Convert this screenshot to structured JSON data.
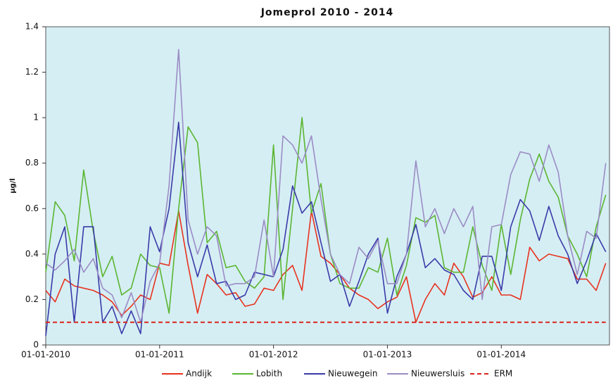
{
  "chart_data": {
    "type": "line",
    "title": "Jomeprol 2010 - 2014",
    "y_label": "µg/l",
    "x": [
      2010,
      2010.083,
      2010.167,
      2010.25,
      2010.333,
      2010.417,
      2010.5,
      2010.583,
      2010.667,
      2010.75,
      2010.833,
      2010.917,
      2011,
      2011.083,
      2011.167,
      2011.25,
      2011.333,
      2011.417,
      2011.5,
      2011.583,
      2011.667,
      2011.75,
      2011.833,
      2011.917,
      2012,
      2012.083,
      2012.167,
      2012.25,
      2012.333,
      2012.417,
      2012.5,
      2012.583,
      2012.667,
      2012.75,
      2012.833,
      2012.917,
      2013,
      2013.083,
      2013.167,
      2013.25,
      2013.333,
      2013.417,
      2013.5,
      2013.583,
      2013.667,
      2013.75,
      2013.833,
      2013.917,
      2014,
      2014.083,
      2014.167,
      2014.25,
      2014.333,
      2014.417,
      2014.5,
      2014.583,
      2014.667,
      2014.75,
      2014.833,
      2014.917
    ],
    "series": [
      {
        "name": "Andijk",
        "color": "#e8321e",
        "values": [
          0.24,
          0.19,
          0.29,
          0.26,
          0.25,
          0.24,
          0.22,
          0.19,
          0.13,
          0.17,
          0.22,
          0.2,
          0.36,
          0.35,
          0.59,
          0.35,
          0.14,
          0.31,
          0.27,
          0.22,
          0.23,
          0.17,
          0.18,
          0.25,
          0.24,
          0.31,
          0.35,
          0.24,
          0.59,
          0.39,
          0.36,
          0.31,
          0.25,
          0.22,
          0.2,
          0.16,
          0.19,
          0.21,
          0.3,
          0.1,
          0.2,
          0.27,
          0.22,
          0.36,
          0.3,
          0.21,
          0.23,
          0.3,
          0.22,
          0.22,
          0.2,
          0.43,
          0.37,
          0.4,
          0.39,
          0.38,
          0.29,
          0.29,
          0.24,
          0.36
        ]
      },
      {
        "name": "Lobith",
        "color": "#5bb531",
        "values": [
          0.32,
          0.63,
          0.57,
          0.37,
          0.77,
          0.5,
          0.3,
          0.39,
          0.22,
          0.25,
          0.4,
          0.35,
          0.34,
          0.14,
          0.6,
          0.96,
          0.89,
          0.45,
          0.5,
          0.34,
          0.35,
          0.28,
          0.25,
          0.3,
          0.88,
          0.2,
          0.6,
          1.0,
          0.58,
          0.71,
          0.4,
          0.27,
          0.25,
          0.25,
          0.34,
          0.32,
          0.47,
          0.22,
          0.35,
          0.56,
          0.54,
          0.57,
          0.34,
          0.32,
          0.32,
          0.52,
          0.35,
          0.24,
          0.53,
          0.31,
          0.55,
          0.73,
          0.84,
          0.72,
          0.65,
          0.48,
          0.4,
          0.3,
          0.52,
          0.66
        ]
      },
      {
        "name": "Nieuwegein",
        "color": "#3a3aa8",
        "values": [
          0.04,
          0.4,
          0.52,
          0.1,
          0.52,
          0.52,
          0.1,
          0.17,
          0.05,
          0.15,
          0.05,
          0.52,
          0.41,
          0.6,
          0.98,
          0.45,
          0.3,
          0.44,
          0.27,
          0.28,
          0.2,
          0.22,
          0.32,
          0.31,
          0.3,
          0.42,
          0.7,
          0.58,
          0.63,
          0.45,
          0.28,
          0.31,
          0.17,
          0.28,
          0.4,
          0.47,
          0.14,
          0.3,
          0.4,
          0.53,
          0.34,
          0.38,
          0.33,
          0.31,
          0.24,
          0.2,
          0.39,
          0.39,
          0.24,
          0.52,
          0.64,
          0.59,
          0.46,
          0.61,
          0.48,
          0.4,
          0.27,
          0.37,
          0.49,
          0.41
        ]
      },
      {
        "name": "Nieuwersluis",
        "color": "#9b8cc4",
        "values": [
          0.36,
          0.33,
          0.37,
          0.42,
          0.32,
          0.38,
          0.25,
          0.22,
          0.12,
          0.23,
          0.1,
          0.28,
          0.36,
          0.7,
          1.3,
          0.55,
          0.4,
          0.52,
          0.48,
          0.26,
          0.27,
          0.27,
          0.3,
          0.55,
          0.3,
          0.92,
          0.88,
          0.8,
          0.92,
          0.64,
          0.4,
          0.31,
          0.27,
          0.43,
          0.38,
          0.46,
          0.27,
          0.27,
          0.4,
          0.81,
          0.52,
          0.6,
          0.49,
          0.6,
          0.52,
          0.61,
          0.2,
          0.52,
          0.53,
          0.75,
          0.85,
          0.84,
          0.72,
          0.88,
          0.76,
          0.48,
          0.31,
          0.5,
          0.47,
          0.8
        ]
      },
      {
        "name": "ERM",
        "color": "#d9261c",
        "dashed": true,
        "values": [
          0.1,
          0.1,
          0.1,
          0.1,
          0.1,
          0.1,
          0.1,
          0.1,
          0.1,
          0.1,
          0.1,
          0.1,
          0.1,
          0.1,
          0.1,
          0.1,
          0.1,
          0.1,
          0.1,
          0.1,
          0.1,
          0.1,
          0.1,
          0.1,
          0.1,
          0.1,
          0.1,
          0.1,
          0.1,
          0.1,
          0.1,
          0.1,
          0.1,
          0.1,
          0.1,
          0.1,
          0.1,
          0.1,
          0.1,
          0.1,
          0.1,
          0.1,
          0.1,
          0.1,
          0.1,
          0.1,
          0.1,
          0.1,
          0.1,
          0.1,
          0.1,
          0.1,
          0.1,
          0.1,
          0.1,
          0.1,
          0.1,
          0.1,
          0.1,
          0.1
        ]
      }
    ],
    "xlim": [
      2010,
      2014.95
    ],
    "xticks": [
      {
        "value": 2010,
        "label": "01-01-2010"
      },
      {
        "value": 2011,
        "label": "01-01-2011"
      },
      {
        "value": 2012,
        "label": "01-01-2012"
      },
      {
        "value": 2013,
        "label": "01-01-2013"
      },
      {
        "value": 2014,
        "label": "01-01-2014"
      }
    ],
    "ylim": [
      0,
      1.4
    ],
    "yticks": [
      0,
      0.2,
      0.4,
      0.6,
      0.8,
      1,
      1.2,
      1.4
    ],
    "plot_background": "#d5eef4",
    "grid": false,
    "legend": "bottom"
  }
}
